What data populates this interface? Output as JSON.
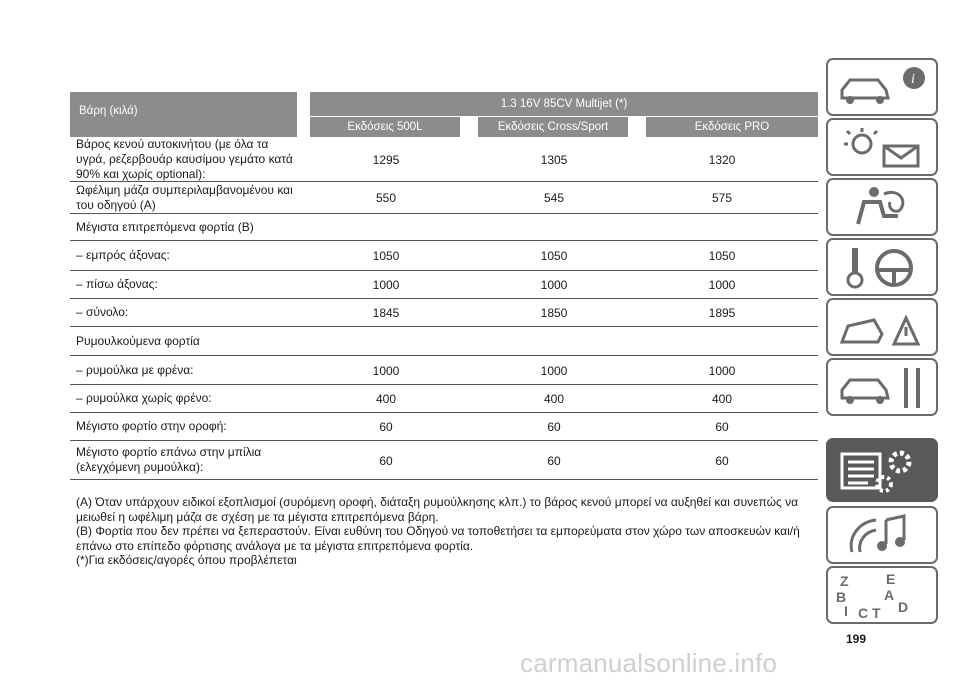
{
  "table": {
    "header_left": "Βάρη (κιλά)",
    "header_top": "1.3 16V 85CV Multijet (*)",
    "subheaders": [
      "Εκδόσεις 500L",
      "Εκδόσεις Cross/Sport",
      "Εκδόσεις PRO"
    ],
    "rows": [
      {
        "label_lines": [
          "Βάρος κενού αυτοκινήτου (με όλα τα",
          "υγρά, ρεζερβουάρ καυσίμου γεμάτο κατά",
          "90% και χωρίς optional):"
        ],
        "values": [
          "1295",
          "1305",
          "1320"
        ]
      },
      {
        "label_lines": [
          "Ωφέλιμη μάζα συμπεριλαμβανομένου και",
          "του οδηγού (A)"
        ],
        "values": [
          "550",
          "545",
          "575"
        ]
      },
      {
        "label_lines": [
          "Μέγιστα επιτρεπόμενα φορτία (B)"
        ],
        "values": [
          "",
          "",
          ""
        ]
      },
      {
        "label_lines": [
          "– εμπρός άξονας:"
        ],
        "values": [
          "1050",
          "1050",
          "1050"
        ]
      },
      {
        "label_lines": [
          "– πίσω άξονας:"
        ],
        "values": [
          "1000",
          "1000",
          "1000"
        ]
      },
      {
        "label_lines": [
          "– σύνολο:"
        ],
        "values": [
          "1845",
          "1850",
          "1895"
        ]
      },
      {
        "label_lines": [
          "Ρυμουλκούμενα φορτία"
        ],
        "values": [
          "",
          "",
          ""
        ]
      },
      {
        "label_lines": [
          "– ρυμούλκα με φρένα:"
        ],
        "values": [
          "1000",
          "1000",
          "1000"
        ]
      },
      {
        "label_lines": [
          "– ρυμούλκα χωρίς φρένο:"
        ],
        "values": [
          "400",
          "400",
          "400"
        ]
      },
      {
        "label_lines": [
          "Μέγιστο φορτίο στην οροφή:"
        ],
        "values": [
          "60",
          "60",
          "60"
        ]
      },
      {
        "label_lines": [
          "Μέγιστο φορτίο επάνω στην μπίλια",
          "(ελεγχόμενη ρυμούλκα):"
        ],
        "values": [
          "60",
          "60",
          "60"
        ]
      }
    ]
  },
  "notes": [
    "(A) Όταν υπάρχουν ειδικοί εξοπλισμοί (συρόμενη οροφή, διάταξη ρυμούλκησης κλπ.) το βάρος κενού μπορεί να αυξηθεί και συνεπώς να",
    "μειωθεί η ωφέλιμη μάζα σε σχέση με τα μέγιστα επιτρεπόμενα βάρη.",
    "(B) Φορτία που δεν πρέπει να ξεπεραστούν. Είναι ευθύνη του Οδηγού να τοποθετήσει τα εμπορεύματα στον χώρο των αποσκευών και/ή",
    "επάνω στο επίπεδο φόρτισης ανάλογα με τα μέγιστα επιτρεπόμενα φορτία.",
    "(*)Για εκδόσεις/αγορές όπου προβλέπεται"
  ],
  "side_tabs": [
    {
      "icon": "car-info-icon",
      "active": false
    },
    {
      "icon": "warning-lights-message-icon",
      "active": false
    },
    {
      "icon": "airbag-seat-icon",
      "active": false
    },
    {
      "icon": "key-steering-wheel-icon",
      "active": false
    },
    {
      "icon": "car-breakdown-warning-icon",
      "active": false
    },
    {
      "icon": "car-maintenance-tools-icon",
      "active": false
    },
    {
      "icon": "technical-data-gears-icon",
      "active": true
    },
    {
      "icon": "multimedia-music-icon",
      "active": false
    },
    {
      "icon": "alphabetical-index-icon",
      "active": false
    }
  ],
  "index_letters": [
    "Z",
    "E",
    "B",
    "A",
    "I",
    "C",
    "D",
    "T"
  ],
  "page_number": "199",
  "watermark": "carmanualsonline.info"
}
